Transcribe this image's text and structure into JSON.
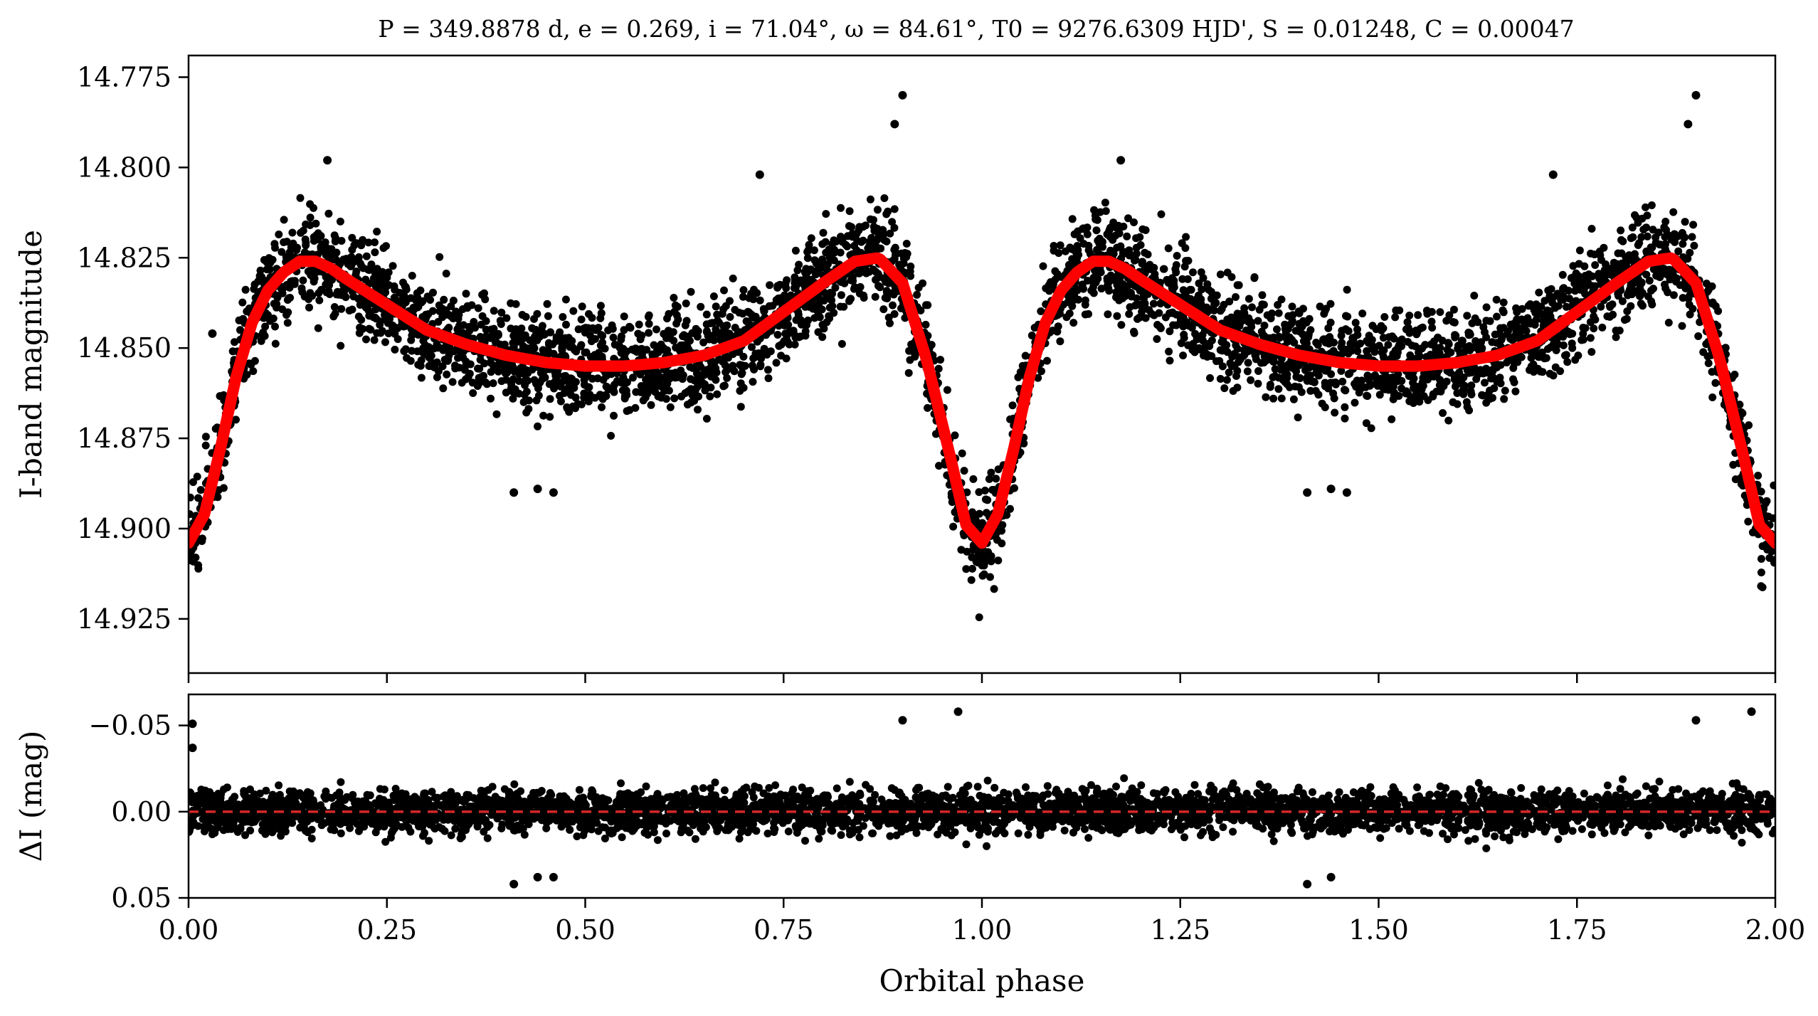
{
  "chart_data": [
    {
      "type": "scatter",
      "panel": "light-curve",
      "title": "P = 349.8878 d, e = 0.269, i = 71.04°, ω = 84.61°, T0 = 9276.6309 HJD', S = 0.01248, C = 0.00047",
      "xlabel": "Orbital phase",
      "ylabel": "I-band magnitude",
      "xlim": [
        0.0,
        2.0
      ],
      "ylim": [
        14.94,
        14.769
      ],
      "y_inverted": true,
      "xticks": [
        "0.00",
        "0.25",
        "0.50",
        "0.75",
        "1.00",
        "1.25",
        "1.50",
        "1.75",
        "2.00"
      ],
      "yticks": [
        "14.775",
        "14.800",
        "14.825",
        "14.850",
        "14.875",
        "14.900",
        "14.925"
      ],
      "yticks_values": [
        14.775,
        14.8,
        14.825,
        14.85,
        14.875,
        14.9,
        14.925
      ],
      "grid": false,
      "series": [
        {
          "kind": "observations",
          "color": "#000000",
          "phase": [
            0.0,
            0.02,
            0.04,
            0.06,
            0.08,
            0.1,
            0.12,
            0.14,
            0.16,
            0.18,
            0.2,
            0.25,
            0.3,
            0.35,
            0.4,
            0.45,
            0.5,
            0.55,
            0.6,
            0.65,
            0.7,
            0.75,
            0.8,
            0.84,
            0.87,
            0.9,
            0.93,
            0.96,
            0.98,
            1.0,
            1.02,
            1.04,
            1.06,
            1.08,
            1.1,
            1.12,
            1.14,
            1.16,
            1.18,
            1.2,
            1.25,
            1.3,
            1.35,
            1.4,
            1.45,
            1.5,
            1.55,
            1.6,
            1.65,
            1.7,
            1.75,
            1.8,
            1.84,
            1.87,
            1.9,
            1.93,
            1.96,
            1.98,
            2.0
          ],
          "magnitude": [
            14.904,
            14.896,
            14.878,
            14.858,
            14.843,
            14.834,
            14.829,
            14.826,
            14.826,
            14.828,
            14.831,
            14.838,
            14.845,
            14.849,
            14.852,
            14.854,
            14.855,
            14.855,
            14.854,
            14.852,
            14.848,
            14.84,
            14.832,
            14.826,
            14.825,
            14.832,
            14.853,
            14.88,
            14.899,
            14.904,
            14.896,
            14.878,
            14.858,
            14.843,
            14.834,
            14.829,
            14.826,
            14.826,
            14.828,
            14.831,
            14.838,
            14.845,
            14.849,
            14.852,
            14.854,
            14.855,
            14.855,
            14.854,
            14.852,
            14.848,
            14.84,
            14.832,
            14.826,
            14.825,
            14.832,
            14.853,
            14.88,
            14.899,
            14.904
          ],
          "outliers": [
            {
              "phase": 0.9,
              "magnitude": 14.78
            },
            {
              "phase": 0.89,
              "magnitude": 14.788
            },
            {
              "phase": 0.175,
              "magnitude": 14.798
            },
            {
              "phase": 0.72,
              "magnitude": 14.802
            },
            {
              "phase": 0.41,
              "magnitude": 14.89
            },
            {
              "phase": 0.44,
              "magnitude": 14.889
            },
            {
              "phase": 0.46,
              "magnitude": 14.89
            },
            {
              "phase": 0.03,
              "magnitude": 14.846
            },
            {
              "phase": 1.9,
              "magnitude": 14.78
            },
            {
              "phase": 1.89,
              "magnitude": 14.788
            },
            {
              "phase": 1.175,
              "magnitude": 14.798
            },
            {
              "phase": 1.72,
              "magnitude": 14.802
            },
            {
              "phase": 1.41,
              "magnitude": 14.89
            },
            {
              "phase": 1.44,
              "magnitude": 14.889
            },
            {
              "phase": 1.46,
              "magnitude": 14.89
            }
          ]
        },
        {
          "kind": "model",
          "color": "#ff0000",
          "phase": [
            0.0,
            0.02,
            0.04,
            0.06,
            0.08,
            0.1,
            0.12,
            0.14,
            0.16,
            0.18,
            0.2,
            0.25,
            0.3,
            0.35,
            0.4,
            0.45,
            0.5,
            0.55,
            0.6,
            0.65,
            0.7,
            0.75,
            0.8,
            0.84,
            0.87,
            0.9,
            0.93,
            0.96,
            0.98,
            1.0,
            1.02,
            1.04,
            1.06,
            1.08,
            1.1,
            1.12,
            1.14,
            1.16,
            1.18,
            1.2,
            1.25,
            1.3,
            1.35,
            1.4,
            1.45,
            1.5,
            1.55,
            1.6,
            1.65,
            1.7,
            1.75,
            1.8,
            1.84,
            1.87,
            1.9,
            1.93,
            1.96,
            1.98,
            2.0
          ],
          "magnitude": [
            14.904,
            14.896,
            14.878,
            14.858,
            14.843,
            14.834,
            14.829,
            14.826,
            14.826,
            14.828,
            14.831,
            14.838,
            14.845,
            14.849,
            14.852,
            14.854,
            14.855,
            14.855,
            14.854,
            14.852,
            14.848,
            14.84,
            14.832,
            14.826,
            14.825,
            14.832,
            14.853,
            14.88,
            14.899,
            14.904,
            14.896,
            14.878,
            14.858,
            14.843,
            14.834,
            14.829,
            14.826,
            14.826,
            14.828,
            14.831,
            14.838,
            14.845,
            14.849,
            14.852,
            14.854,
            14.855,
            14.855,
            14.854,
            14.852,
            14.848,
            14.84,
            14.832,
            14.826,
            14.825,
            14.832,
            14.853,
            14.88,
            14.899,
            14.904
          ]
        }
      ],
      "noise_scatter_mag": 0.012
    },
    {
      "type": "scatter",
      "panel": "residuals",
      "xlabel": "Orbital phase",
      "ylabel": "ΔI (mag)",
      "xlim": [
        0.0,
        2.0
      ],
      "ylim": [
        0.05,
        -0.068
      ],
      "y_inverted": true,
      "xticks": [
        "0.00",
        "0.25",
        "0.50",
        "0.75",
        "1.00",
        "1.25",
        "1.50",
        "1.75",
        "2.00"
      ],
      "yticks": [
        "−0.05",
        "0.00",
        "0.05"
      ],
      "yticks_values": [
        -0.05,
        0.0,
        0.05
      ],
      "zero_line": {
        "value": 0.0,
        "color": "#d62728",
        "style": "dashed"
      },
      "residual_scatter_mag": 0.011,
      "outliers": [
        {
          "phase": 0.005,
          "delta": -0.037
        },
        {
          "phase": 0.005,
          "delta": -0.051
        },
        {
          "phase": 0.41,
          "delta": 0.042
        },
        {
          "phase": 0.44,
          "delta": 0.038
        },
        {
          "phase": 0.46,
          "delta": 0.038
        },
        {
          "phase": 0.9,
          "delta": -0.053
        },
        {
          "phase": 0.97,
          "delta": -0.058
        },
        {
          "phase": 1.41,
          "delta": 0.042
        },
        {
          "phase": 1.44,
          "delta": 0.038
        },
        {
          "phase": 1.9,
          "delta": -0.053
        },
        {
          "phase": 1.97,
          "delta": -0.058
        }
      ]
    }
  ]
}
